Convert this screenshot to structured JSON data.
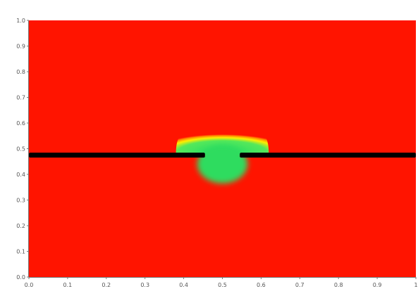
{
  "chart_data": {
    "type": "heatmap",
    "title": "",
    "xlabel": "",
    "ylabel": "",
    "xlim": [
      0,
      1
    ],
    "ylim": [
      0,
      1
    ],
    "x_ticks": [
      "0.0",
      "0.1",
      "0.2",
      "0.3",
      "0.4",
      "0.5",
      "0.6",
      "0.7",
      "0.8",
      "0.9",
      "1"
    ],
    "y_ticks": [
      "0.0",
      "0.1",
      "0.2",
      "0.3",
      "0.4",
      "0.5",
      "0.6",
      "0.7",
      "0.8",
      "0.9",
      "1.0"
    ],
    "grid": false,
    "legend": "none",
    "colors": {
      "background_field": "#ff1400",
      "plume_core": "#22dd55",
      "plume_mid": "#ffee00",
      "plume_edge": "#ff8800",
      "barrier": "#000000"
    },
    "barrier": {
      "y": 0.475,
      "x_from": 0.0,
      "x_to": 1.0,
      "gap": [
        0.455,
        0.545
      ]
    },
    "plume": {
      "center_x": 0.5,
      "top_y": 0.57,
      "dome_half_width": 0.12,
      "core_center_y": 0.44,
      "fade_bottom_y": 0.0
    }
  }
}
